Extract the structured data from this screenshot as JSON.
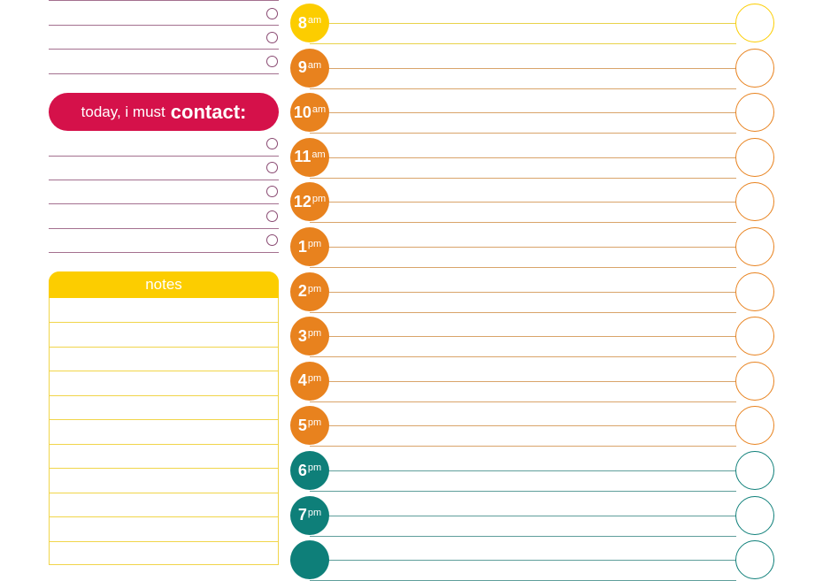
{
  "contact": {
    "prefix": "today, i must",
    "emphasis": "contact:"
  },
  "notes": {
    "title": "notes"
  },
  "colors": {
    "morning": "#fccd00",
    "day": "#e8821e",
    "evening": "#0e7f79",
    "contact": "#d5114a",
    "notes": "#fccd00",
    "list_line": "#a4708f"
  },
  "hours": [
    {
      "num": "8",
      "suffix": "am",
      "color": "#fccd00",
      "line": "#e8d34a"
    },
    {
      "num": "9",
      "suffix": "am",
      "color": "#e8821e",
      "line": "#d9a46a"
    },
    {
      "num": "10",
      "suffix": "am",
      "color": "#e8821e",
      "line": "#d9a46a"
    },
    {
      "num": "11",
      "suffix": "am",
      "color": "#e8821e",
      "line": "#d9a46a"
    },
    {
      "num": "12",
      "suffix": "pm",
      "color": "#e8821e",
      "line": "#d9a46a"
    },
    {
      "num": "1",
      "suffix": "pm",
      "color": "#e8821e",
      "line": "#d9a46a"
    },
    {
      "num": "2",
      "suffix": "pm",
      "color": "#e8821e",
      "line": "#d9a46a"
    },
    {
      "num": "3",
      "suffix": "pm",
      "color": "#e8821e",
      "line": "#d9a46a"
    },
    {
      "num": "4",
      "suffix": "pm",
      "color": "#e8821e",
      "line": "#d9a46a"
    },
    {
      "num": "5",
      "suffix": "pm",
      "color": "#e8821e",
      "line": "#d9a46a"
    },
    {
      "num": "6",
      "suffix": "pm",
      "color": "#0e7f79",
      "line": "#5f9e9b"
    },
    {
      "num": "7",
      "suffix": "pm",
      "color": "#0e7f79",
      "line": "#5f9e9b"
    },
    {
      "num": "",
      "suffix": "",
      "color": "#0e7f79",
      "line": "#5f9e9b"
    }
  ]
}
